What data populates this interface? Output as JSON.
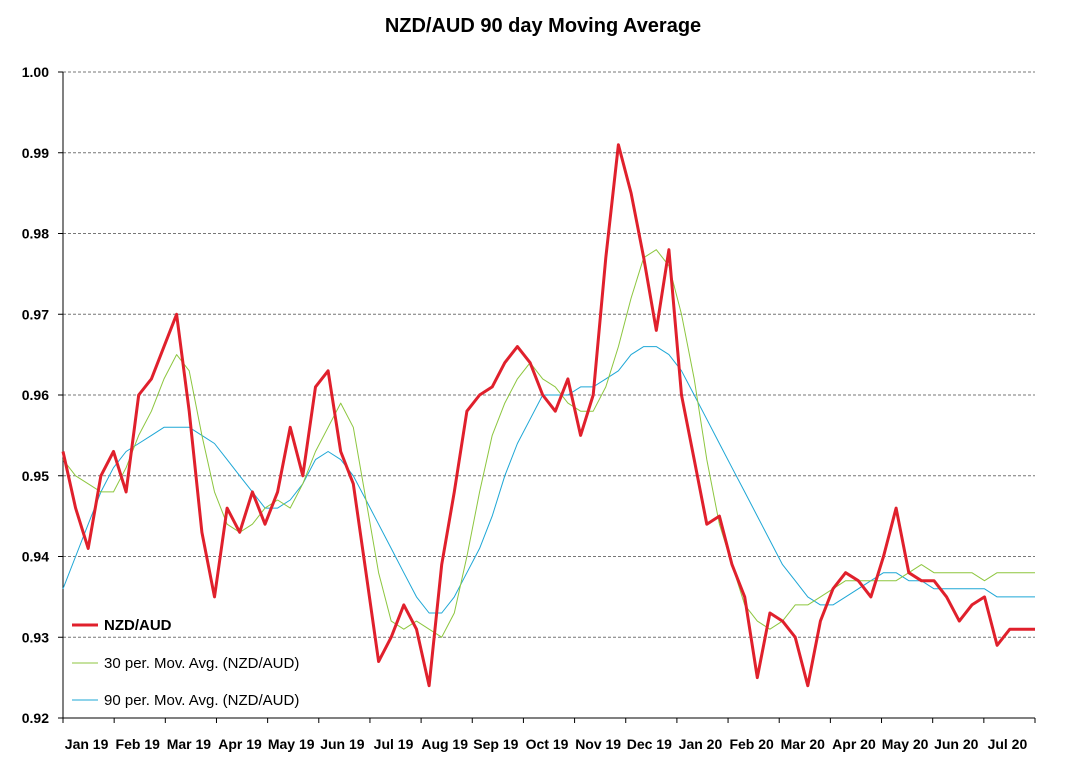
{
  "chart_data": {
    "type": "line",
    "title": "NZD/AUD 90 day Moving Average",
    "xlabel": "",
    "ylabel": "",
    "ylim": [
      0.92,
      1.0
    ],
    "yticks": [
      "0.92",
      "0.93",
      "0.94",
      "0.95",
      "0.96",
      "0.97",
      "0.98",
      "0.99",
      "1.00"
    ],
    "xticks": [
      "Jan 19",
      "Feb 19",
      "Mar 19",
      "Apr 19",
      "May 19",
      "Jun 19",
      "Jul 19",
      "Aug 19",
      "Sep 19",
      "Oct 19",
      "Nov 19",
      "Dec 19",
      "Jan 20",
      "Feb 20",
      "Mar 20",
      "Apr 20",
      "May 20",
      "Jun 20",
      "Jul 20"
    ],
    "grid": "horizontal dashed",
    "legend_position": "bottom-left",
    "x": [
      0,
      0.5,
      1,
      1.5,
      2,
      2.5,
      3,
      3.5,
      4,
      4.5,
      5,
      5.5,
      6,
      6.5,
      7,
      7.5,
      8,
      8.5,
      9,
      9.5,
      10,
      10.5,
      11,
      11.5,
      12,
      12.5,
      13,
      13.5,
      14,
      14.5,
      15,
      15.5,
      16,
      16.5,
      17,
      17.5,
      18,
      18.5,
      19
    ],
    "series": [
      {
        "name": "NZD/AUD",
        "color": "#e0202c",
        "values": [
          0.953,
          0.946,
          0.941,
          0.95,
          0.953,
          0.948,
          0.96,
          0.962,
          0.966,
          0.97,
          0.958,
          0.943,
          0.935,
          0.946,
          0.943,
          0.948,
          0.944,
          0.948,
          0.956,
          0.95,
          0.961,
          0.963,
          0.953,
          0.949,
          0.938,
          0.927,
          0.93,
          0.934,
          0.931,
          0.924,
          0.939,
          0.948,
          0.958,
          0.96,
          0.961,
          0.964,
          0.966,
          0.964,
          0.96
        ]
      },
      {
        "name": "30 per. Mov. Avg. (NZD/AUD)",
        "color": "#8dc63f",
        "values": [
          0.952,
          0.95,
          0.949,
          0.948,
          0.948,
          0.951,
          0.955,
          0.958,
          0.962,
          0.965,
          0.963,
          0.955,
          0.948,
          0.944,
          0.943,
          0.944,
          0.946,
          0.947,
          0.946,
          0.949,
          0.953,
          0.956,
          0.959,
          0.956,
          0.947,
          0.938,
          0.932,
          0.931,
          0.932,
          0.931,
          0.93,
          0.933,
          0.94,
          0.948,
          0.955,
          0.959,
          0.962,
          0.964,
          0.962
        ]
      },
      {
        "name": "90 per. Mov. Avg. (NZD/AUD)",
        "color": "#1ea7d6",
        "values": [
          0.936,
          0.94,
          0.944,
          0.948,
          0.951,
          0.953,
          0.954,
          0.955,
          0.956,
          0.956,
          0.956,
          0.955,
          0.954,
          0.952,
          0.95,
          0.948,
          0.946,
          0.946,
          0.947,
          0.949,
          0.952,
          0.953,
          0.952,
          0.95,
          0.947,
          0.944,
          0.941,
          0.938,
          0.935,
          0.933,
          0.933,
          0.935,
          0.938,
          0.941,
          0.945,
          0.95,
          0.954,
          0.957,
          0.96
        ]
      }
    ],
    "extra_points": {
      "x": [
        19.5,
        20,
        20.5,
        21,
        21.5,
        22,
        22.5,
        23,
        23.5,
        24,
        24.5,
        25,
        25.5,
        26,
        26.5,
        27,
        27.5,
        28,
        28.5,
        29,
        29.5,
        30,
        30.5,
        31,
        31.5,
        32,
        32.5,
        33,
        33.5,
        34,
        34.5,
        35,
        35.5,
        36,
        36.5,
        37,
        37.5,
        38,
        38.5
      ],
      "red": [
        0.958,
        0.962,
        0.955,
        0.96,
        0.977,
        0.991,
        0.985,
        0.977,
        0.968,
        0.978,
        0.96,
        0.952,
        0.944,
        0.945,
        0.939,
        0.935,
        0.925,
        0.933,
        0.932,
        0.93,
        0.924,
        0.932,
        0.936,
        0.938,
        0.937,
        0.935,
        0.94,
        0.946,
        0.938,
        0.937,
        0.937,
        0.935,
        0.932,
        0.934,
        0.935,
        0.929,
        0.931,
        0.931,
        0.931
      ],
      "green": [
        0.961,
        0.959,
        0.958,
        0.958,
        0.961,
        0.966,
        0.972,
        0.977,
        0.978,
        0.976,
        0.97,
        0.962,
        0.952,
        0.944,
        0.939,
        0.934,
        0.932,
        0.931,
        0.932,
        0.934,
        0.934,
        0.935,
        0.936,
        0.937,
        0.937,
        0.937,
        0.937,
        0.937,
        0.938,
        0.939,
        0.938,
        0.938,
        0.938,
        0.938,
        0.937,
        0.938,
        0.938,
        0.938,
        0.938
      ],
      "blue": [
        0.96,
        0.96,
        0.961,
        0.961,
        0.962,
        0.963,
        0.965,
        0.966,
        0.966,
        0.965,
        0.963,
        0.96,
        0.957,
        0.954,
        0.951,
        0.948,
        0.945,
        0.942,
        0.939,
        0.937,
        0.935,
        0.934,
        0.934,
        0.935,
        0.936,
        0.937,
        0.938,
        0.938,
        0.937,
        0.937,
        0.936,
        0.936,
        0.936,
        0.936,
        0.936,
        0.935,
        0.935,
        0.935,
        0.935
      ]
    }
  }
}
